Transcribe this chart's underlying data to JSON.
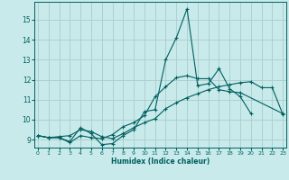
{
  "xlabel": "Humidex (Indice chaleur)",
  "x_ticks": [
    0,
    1,
    2,
    3,
    4,
    5,
    6,
    7,
    8,
    9,
    10,
    11,
    12,
    13,
    14,
    15,
    16,
    17,
    18,
    19,
    20,
    21,
    22,
    23
  ],
  "ylim": [
    8.6,
    15.9
  ],
  "yticks": [
    9,
    10,
    11,
    12,
    13,
    14,
    15
  ],
  "xlim": [
    -0.3,
    23.3
  ],
  "bg_color": "#c8eaea",
  "grid_color": "#aacccc",
  "line_color": "#005f5f",
  "series_x": [
    [
      0,
      1,
      2,
      3,
      4,
      5,
      6,
      7,
      8,
      9,
      10,
      11,
      12,
      13,
      14,
      15,
      16,
      17,
      18,
      19,
      20
    ],
    [
      0,
      1,
      2,
      3,
      4,
      5,
      6,
      7,
      8,
      9,
      10,
      11,
      12,
      13,
      14,
      15,
      16,
      17,
      18,
      19,
      20,
      21,
      22,
      23
    ],
    [
      0,
      1,
      2,
      3,
      4,
      5,
      6,
      7,
      8,
      9,
      10,
      11,
      12,
      13,
      14,
      15,
      16,
      17,
      18,
      19,
      23
    ]
  ],
  "series_y": [
    [
      9.2,
      9.1,
      9.1,
      8.9,
      9.6,
      9.3,
      8.75,
      8.8,
      9.2,
      9.5,
      10.4,
      10.5,
      13.0,
      14.1,
      15.55,
      11.7,
      11.8,
      12.55,
      11.55,
      11.15,
      10.3
    ],
    [
      9.2,
      9.1,
      9.15,
      9.2,
      9.5,
      9.4,
      9.15,
      9.05,
      9.3,
      9.6,
      9.85,
      10.05,
      10.55,
      10.85,
      11.1,
      11.3,
      11.5,
      11.65,
      11.75,
      11.85,
      11.9,
      11.6,
      11.6,
      10.25
    ],
    [
      9.2,
      9.1,
      9.1,
      8.85,
      9.2,
      9.1,
      9.05,
      9.25,
      9.65,
      9.85,
      10.2,
      11.15,
      11.65,
      12.1,
      12.2,
      12.05,
      12.05,
      11.5,
      11.4,
      11.35,
      10.3
    ]
  ]
}
